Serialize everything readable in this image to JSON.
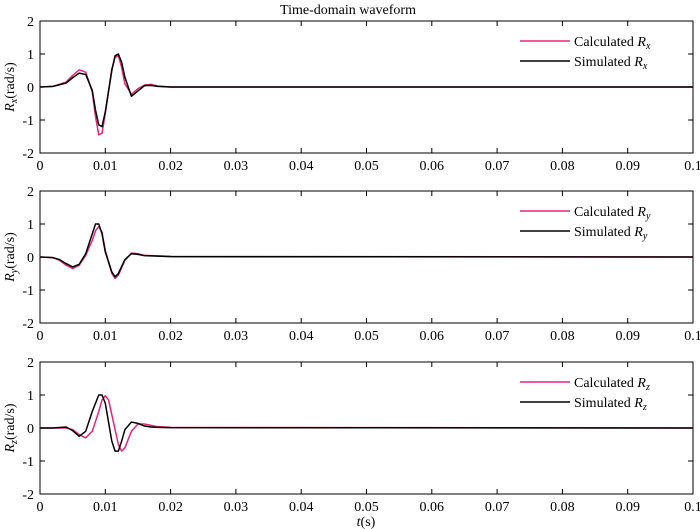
{
  "title": "Time-domain waveform",
  "xlabel": {
    "italic": "t",
    "rest": "(s)"
  },
  "colors": {
    "calculated": "#e8247a",
    "simulated": "#000000"
  },
  "chart_data": [
    {
      "type": "line",
      "ylabel": {
        "italic": "R",
        "sub": "x",
        "rest": "(rad/s)"
      },
      "xlim": [
        0,
        0.1
      ],
      "ylim": [
        -2,
        2
      ],
      "xticks": [
        "0",
        "0.01",
        "0.02",
        "0.03",
        "0.04",
        "0.05",
        "0.06",
        "0.07",
        "0.08",
        "0.09",
        "0.1"
      ],
      "yticks": [
        "2",
        "1",
        "0",
        "-1",
        "-2"
      ],
      "legend_position": "top-right",
      "series": [
        {
          "name": "Calculated R_x",
          "legend": "Calculated ",
          "sub": "x",
          "color": "#e8247a",
          "x": [
            0,
            0.002,
            0.004,
            0.005,
            0.006,
            0.007,
            0.008,
            0.0085,
            0.009,
            0.0095,
            0.01,
            0.011,
            0.0115,
            0.012,
            0.0125,
            0.013,
            0.014,
            0.015,
            0.016,
            0.017,
            0.018,
            0.02,
            0.1
          ],
          "y": [
            0,
            0.02,
            0.15,
            0.35,
            0.52,
            0.45,
            -0.15,
            -0.9,
            -1.45,
            -1.4,
            -0.8,
            0.55,
            0.9,
            0.95,
            0.6,
            0.1,
            -0.22,
            -0.05,
            0.06,
            0.08,
            0.03,
            0,
            0
          ]
        },
        {
          "name": "Simulated R_x",
          "legend": "Simulated ",
          "sub": "x",
          "color": "#000000",
          "x": [
            0,
            0.002,
            0.004,
            0.005,
            0.006,
            0.007,
            0.008,
            0.0085,
            0.009,
            0.0095,
            0.01,
            0.011,
            0.0115,
            0.012,
            0.0125,
            0.013,
            0.014,
            0.015,
            0.016,
            0.017,
            0.018,
            0.02,
            0.1
          ],
          "y": [
            0,
            0.02,
            0.12,
            0.28,
            0.42,
            0.38,
            -0.1,
            -0.7,
            -1.15,
            -1.2,
            -0.75,
            0.5,
            0.95,
            1.0,
            0.75,
            0.3,
            -0.28,
            -0.12,
            0.04,
            0.05,
            0.02,
            0,
            0
          ]
        }
      ]
    },
    {
      "type": "line",
      "ylabel": {
        "italic": "R",
        "sub": "y",
        "rest": "(rad/s)"
      },
      "xlim": [
        0,
        0.1
      ],
      "ylim": [
        -2,
        2
      ],
      "xticks": [
        "0",
        "0.01",
        "0.02",
        "0.03",
        "0.04",
        "0.05",
        "0.06",
        "0.07",
        "0.08",
        "0.09",
        "0.1"
      ],
      "yticks": [
        "2",
        "1",
        "0",
        "-1",
        "-2"
      ],
      "legend_position": "top-right",
      "series": [
        {
          "name": "Calculated R_y",
          "legend": "Calculated ",
          "sub": "y",
          "color": "#e8247a",
          "x": [
            0,
            0.002,
            0.003,
            0.004,
            0.005,
            0.006,
            0.007,
            0.008,
            0.0085,
            0.009,
            0.0095,
            0.01,
            0.011,
            0.0115,
            0.012,
            0.013,
            0.014,
            0.015,
            0.016,
            0.02,
            0.1
          ],
          "y": [
            0,
            -0.02,
            -0.1,
            -0.25,
            -0.35,
            -0.25,
            0.05,
            0.5,
            0.8,
            0.92,
            0.75,
            0.2,
            -0.5,
            -0.65,
            -0.55,
            -0.1,
            0.12,
            0.1,
            0.05,
            0.02,
            0
          ]
        },
        {
          "name": "Simulated R_y",
          "legend": "Simulated ",
          "sub": "y",
          "color": "#000000",
          "x": [
            0,
            0.002,
            0.003,
            0.004,
            0.005,
            0.006,
            0.007,
            0.008,
            0.0085,
            0.009,
            0.0095,
            0.01,
            0.011,
            0.0115,
            0.012,
            0.013,
            0.014,
            0.015,
            0.016,
            0.02,
            0.1
          ],
          "y": [
            0,
            -0.02,
            -0.08,
            -0.2,
            -0.3,
            -0.22,
            0.1,
            0.7,
            1.0,
            1.0,
            0.7,
            0.15,
            -0.45,
            -0.6,
            -0.5,
            -0.08,
            0.1,
            0.08,
            0.04,
            0.01,
            0
          ]
        }
      ]
    },
    {
      "type": "line",
      "ylabel": {
        "italic": "R",
        "sub": "z",
        "rest": "(rad/s)"
      },
      "xlim": [
        0,
        0.1
      ],
      "ylim": [
        -2,
        2
      ],
      "xticks": [
        "0",
        "0.01",
        "0.02",
        "0.03",
        "0.04",
        "0.05",
        "0.06",
        "0.07",
        "0.08",
        "0.09",
        "0.1"
      ],
      "yticks": [
        "2",
        "1",
        "0",
        "-1",
        "-2"
      ],
      "legend_position": "top-right",
      "series": [
        {
          "name": "Calculated R_z",
          "legend": "Calculated ",
          "sub": "z",
          "color": "#e8247a",
          "x": [
            0,
            0.002,
            0.004,
            0.005,
            0.006,
            0.007,
            0.008,
            0.009,
            0.0095,
            0.01,
            0.0105,
            0.011,
            0.012,
            0.0125,
            0.013,
            0.014,
            0.015,
            0.016,
            0.017,
            0.018,
            0.02,
            0.1
          ],
          "y": [
            0,
            0,
            0,
            -0.05,
            -0.2,
            -0.3,
            -0.1,
            0.5,
            0.85,
            0.98,
            0.85,
            0.4,
            -0.5,
            -0.7,
            -0.6,
            -0.1,
            0.12,
            0.12,
            0.08,
            0.04,
            0.02,
            0
          ]
        },
        {
          "name": "Simulated R_z",
          "legend": "Simulated ",
          "sub": "z",
          "color": "#000000",
          "x": [
            0,
            0.002,
            0.004,
            0.005,
            0.006,
            0.007,
            0.008,
            0.009,
            0.0095,
            0.01,
            0.011,
            0.0115,
            0.012,
            0.0125,
            0.013,
            0.014,
            0.015,
            0.016,
            0.017,
            0.018,
            0.02,
            0.1
          ],
          "y": [
            0,
            0,
            0.03,
            -0.08,
            -0.25,
            -0.1,
            0.5,
            1.0,
            1.0,
            0.75,
            -0.4,
            -0.7,
            -0.7,
            -0.4,
            -0.05,
            0.18,
            0.14,
            0.06,
            0.03,
            0.02,
            0.01,
            0
          ]
        }
      ]
    }
  ]
}
